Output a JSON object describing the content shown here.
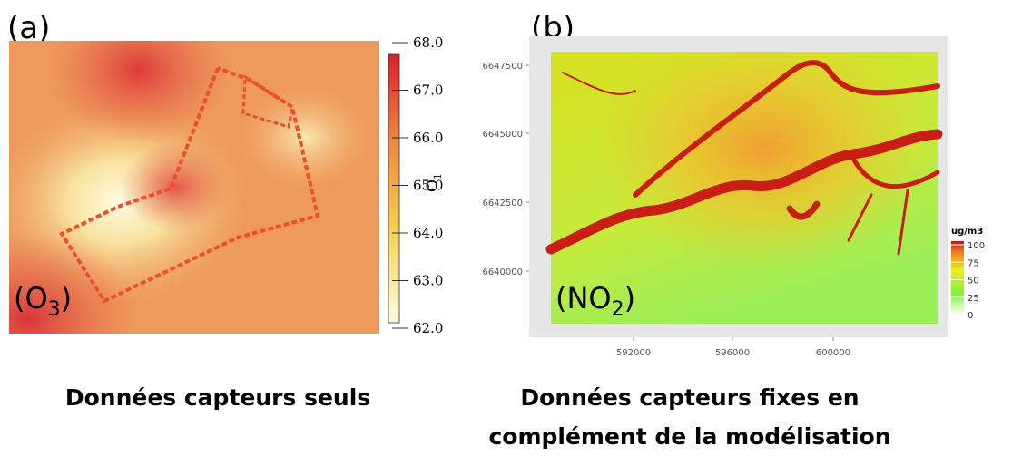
{
  "panel_a": {
    "label": "(a)",
    "inset": {
      "open": "(O",
      "sub": "3",
      "close": ")"
    },
    "colorbar": {
      "title": "O",
      "title_sub": "1",
      "ticks": [
        "68.0",
        "67.0",
        "66.0",
        "65.0",
        "64.0",
        "63.0",
        "62.0"
      ]
    }
  },
  "panel_b": {
    "label": "(b)",
    "inset": {
      "open": "(NO",
      "sub": "2",
      "close": ")"
    },
    "yticks": [
      "6647500",
      "6645000",
      "6642500",
      "6640000"
    ],
    "xticks": [
      "592000",
      "596000",
      "600000"
    ],
    "colorbar": {
      "title": "ug/m3",
      "ticks": [
        "100",
        "75",
        "50",
        "25",
        "0"
      ]
    }
  },
  "captions": {
    "left": "Données capteurs seuls",
    "right_line1": "Données capteurs fixes en",
    "right_line2": "complément de la modélisation"
  }
}
